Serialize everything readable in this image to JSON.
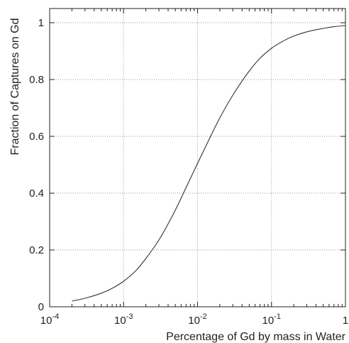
{
  "chart_data": {
    "type": "line",
    "title": "",
    "xlabel": "Percentage of Gd by mass in Water",
    "ylabel": "Fraction of Captures on Gd",
    "x_scale": "log",
    "xlim": [
      0.0001,
      1
    ],
    "ylim": [
      0,
      1.05
    ],
    "grid": true,
    "grid_style": "dotted",
    "legend": "none",
    "line_color": "#333333",
    "x_ticks": [
      {
        "value": 0.0001,
        "base": "10",
        "exp": "-4"
      },
      {
        "value": 0.001,
        "base": "10",
        "exp": "-3"
      },
      {
        "value": 0.01,
        "base": "10",
        "exp": "-2"
      },
      {
        "value": 0.1,
        "base": "10",
        "exp": "-1"
      },
      {
        "value": 1,
        "base": "1",
        "exp": ""
      }
    ],
    "y_ticks": [
      {
        "value": 0,
        "label": "0"
      },
      {
        "value": 0.2,
        "label": "0.2"
      },
      {
        "value": 0.4,
        "label": "0.4"
      },
      {
        "value": 0.6,
        "label": "0.6"
      },
      {
        "value": 0.8,
        "label": "0.8"
      },
      {
        "value": 1,
        "label": "1"
      }
    ],
    "series": [
      {
        "x": [
          0.0002,
          0.0003,
          0.0005,
          0.0007,
          0.001,
          0.0015,
          0.002,
          0.003,
          0.005,
          0.007,
          0.01,
          0.015,
          0.02,
          0.03,
          0.05,
          0.07,
          0.1,
          0.15,
          0.2,
          0.3,
          0.5,
          0.7,
          1
        ],
        "y": [
          0.02,
          0.03,
          0.048,
          0.065,
          0.09,
          0.13,
          0.17,
          0.235,
          0.34,
          0.42,
          0.505,
          0.6,
          0.665,
          0.745,
          0.83,
          0.875,
          0.91,
          0.938,
          0.953,
          0.968,
          0.98,
          0.986,
          0.99
        ]
      }
    ]
  }
}
